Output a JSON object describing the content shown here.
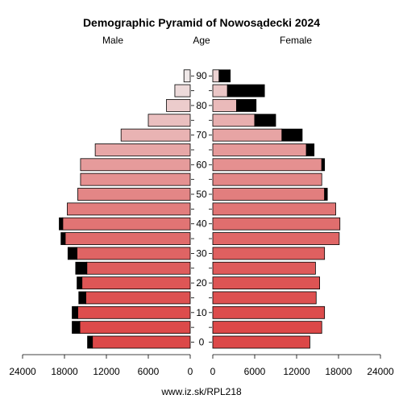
{
  "chart_data": {
    "type": "bar",
    "title": "Demographic Pyramid of Nowosądecki 2024",
    "left_label": "Male",
    "center_label": "Age",
    "right_label": "Female",
    "footer": "www.iz.sk/RPL218",
    "axis": {
      "max": 24000,
      "ticks": [
        0,
        6000,
        12000,
        18000,
        24000
      ],
      "tick_labels_male": [
        "0",
        "6000",
        "12000",
        "18000",
        "24000"
      ],
      "tick_labels_female": [
        "0",
        "6000",
        "12000",
        "18000",
        "24000"
      ]
    },
    "age_labels": [
      "0",
      "10",
      "20",
      "30",
      "40",
      "50",
      "60",
      "70",
      "80",
      "90"
    ],
    "age_groups": [
      "0-4",
      "5-9",
      "10-14",
      "15-19",
      "20-24",
      "25-29",
      "30-34",
      "35-39",
      "40-44",
      "45-49",
      "50-54",
      "55-59",
      "60-64",
      "65-69",
      "70-74",
      "75-79",
      "80-84",
      "85-89",
      "90+"
    ],
    "series": [
      {
        "name": "Male",
        "values": [
          14000,
          15800,
          16100,
          14950,
          15500,
          14800,
          16200,
          17900,
          18250,
          17600,
          16100,
          15700,
          15700,
          13600,
          9900,
          6000,
          3400,
          2200,
          900
        ]
      },
      {
        "name": "Male excess",
        "values": [
          700,
          1100,
          800,
          1000,
          700,
          1600,
          1300,
          600,
          500,
          0,
          0,
          0,
          0,
          0,
          0,
          0,
          0,
          0,
          0
        ]
      },
      {
        "name": "Female",
        "values": [
          13900,
          15600,
          16000,
          14800,
          15300,
          14700,
          16000,
          18100,
          18200,
          17600,
          16000,
          15600,
          15600,
          13400,
          9900,
          6000,
          3400,
          2100,
          900
        ]
      },
      {
        "name": "Female excess",
        "values": [
          0,
          0,
          0,
          0,
          0,
          0,
          0,
          0,
          0,
          0,
          400,
          0,
          400,
          1100,
          2900,
          3000,
          2800,
          5300,
          1600
        ]
      }
    ],
    "colors": {
      "young": "#dc4848",
      "old": "#f0f0f0",
      "excess": "#000000",
      "stroke": "#000000"
    }
  }
}
